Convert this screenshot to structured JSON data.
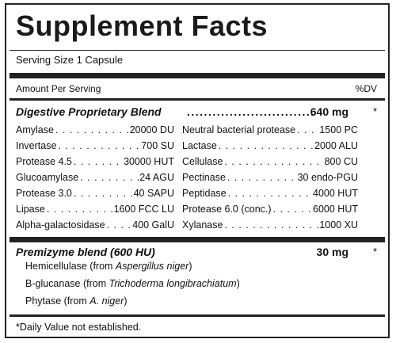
{
  "title": "Supplement Facts",
  "serving_size": "Serving Size 1 Capsule",
  "amount_per_serving": "Amount Per Serving",
  "dv_header": "%DV",
  "digestive_blend": {
    "name": "Digestive Proprietary Blend",
    "amount": "640 mg",
    "dv": "*",
    "left_items": [
      {
        "name": "Amylase",
        "value": "20000 DU"
      },
      {
        "name": "Invertase",
        "value": "700 SU"
      },
      {
        "name": "Protease 4.5",
        "value": "30000 HUT"
      },
      {
        "name": "Glucoamylase",
        "value": "24 AGU"
      },
      {
        "name": "Protease 3.0",
        "value": "40 SAPU"
      },
      {
        "name": "Lipase",
        "value": "1600 FCC LU"
      },
      {
        "name": "Alpha-galactosidase",
        "value": "400 GalU"
      }
    ],
    "right_items": [
      {
        "name": "Neutral bacterial protease",
        "value": "1500 PC"
      },
      {
        "name": "Lactase",
        "value": "2000 ALU"
      },
      {
        "name": "Cellulase",
        "value": "800 CU"
      },
      {
        "name": "Pectinase",
        "value": "30 endo-PGU"
      },
      {
        "name": "Peptidase",
        "value": "4000 HUT"
      },
      {
        "name": "Protease 6.0 (conc.)",
        "value": "6000 HUT"
      },
      {
        "name": "Xylanase",
        "value": "1000 XU"
      }
    ]
  },
  "premizyme_blend": {
    "name": "Premizyme blend (600 HU)",
    "amount": "30 mg",
    "dv": "*",
    "items": [
      {
        "prefix": "Hemicellulase (from ",
        "species": "Aspergillus niger",
        "suffix": ")"
      },
      {
        "prefix": "B-glucanase (from ",
        "species": "Trichoderma longibrachiatum",
        "suffix": ")"
      },
      {
        "prefix": "Phytase (from ",
        "species": "A. niger",
        "suffix": ")"
      }
    ]
  },
  "footnote": "*Daily Value not established."
}
